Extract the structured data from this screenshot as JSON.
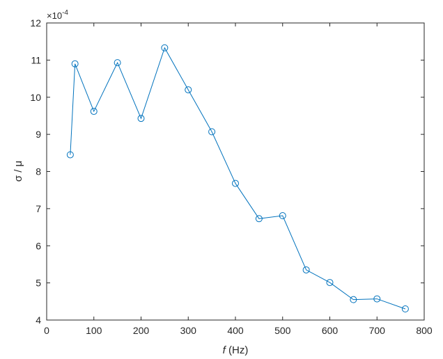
{
  "chart_data": {
    "type": "line",
    "x": [
      50,
      60,
      100,
      150,
      200,
      250,
      300,
      350,
      400,
      450,
      500,
      550,
      600,
      650,
      700,
      760
    ],
    "series": [
      {
        "values": [
          8.45,
          10.9,
          9.62,
          10.93,
          9.43,
          11.33,
          10.2,
          9.07,
          7.68,
          6.73,
          6.81,
          5.35,
          5.01,
          4.55,
          4.57,
          4.3
        ],
        "color": "#0072BD",
        "marker": "open-circle"
      }
    ],
    "xlim": [
      0,
      800
    ],
    "ylim": [
      4,
      12
    ],
    "xticks": [
      "0",
      "100",
      "200",
      "300",
      "400",
      "500",
      "600",
      "700",
      "800"
    ],
    "yticks": [
      "4",
      "5",
      "6",
      "7",
      "8",
      "9",
      "10",
      "11",
      "12"
    ],
    "xlabel_var": "f",
    "xlabel_unit": " (Hz)",
    "ylabel": "σ / μ",
    "exponent_base": "×10",
    "exponent_power": "-4",
    "grid": false,
    "box": true
  }
}
